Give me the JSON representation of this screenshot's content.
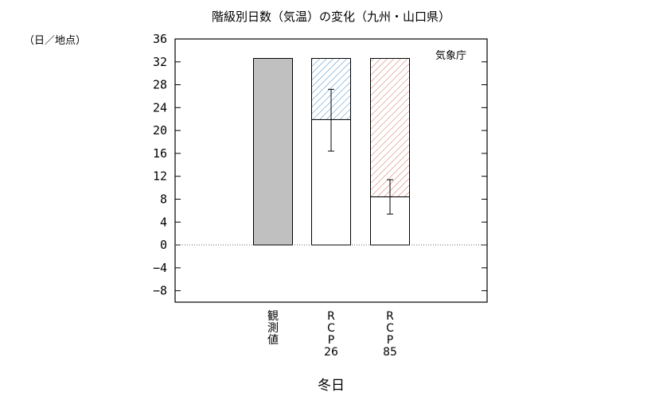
{
  "chart_data": {
    "type": "bar",
    "title": "階級別日数（気温）の変化（九州・山口県）",
    "ylabel": "（日／地点）",
    "xlabel": "冬日",
    "credit": "気象庁",
    "ylim": [
      -10,
      36
    ],
    "yticks": [
      36,
      32,
      28,
      24,
      20,
      16,
      12,
      8,
      4,
      0,
      -4,
      -8
    ],
    "categories": [
      "観測値",
      "RCP26",
      "RCP85"
    ],
    "category_label_lines": [
      [
        "観",
        "測",
        "値"
      ],
      [
        "R",
        "C",
        "P",
        "26"
      ],
      [
        "R",
        "C",
        "P",
        "85"
      ]
    ],
    "series": [
      {
        "category": "観測値",
        "value": 32.6,
        "fill": "#c0c0c0",
        "error": null
      },
      {
        "category": "RCP26",
        "value": 21.9,
        "change": -10.7,
        "hatch_color": "#4a90c8",
        "error": [
          16.4,
          27.2
        ]
      },
      {
        "category": "RCP85",
        "value": 8.4,
        "change": -24.2,
        "hatch_color": "#d0685a",
        "error": [
          5.4,
          11.4
        ]
      }
    ],
    "zero_line": "dotted"
  }
}
